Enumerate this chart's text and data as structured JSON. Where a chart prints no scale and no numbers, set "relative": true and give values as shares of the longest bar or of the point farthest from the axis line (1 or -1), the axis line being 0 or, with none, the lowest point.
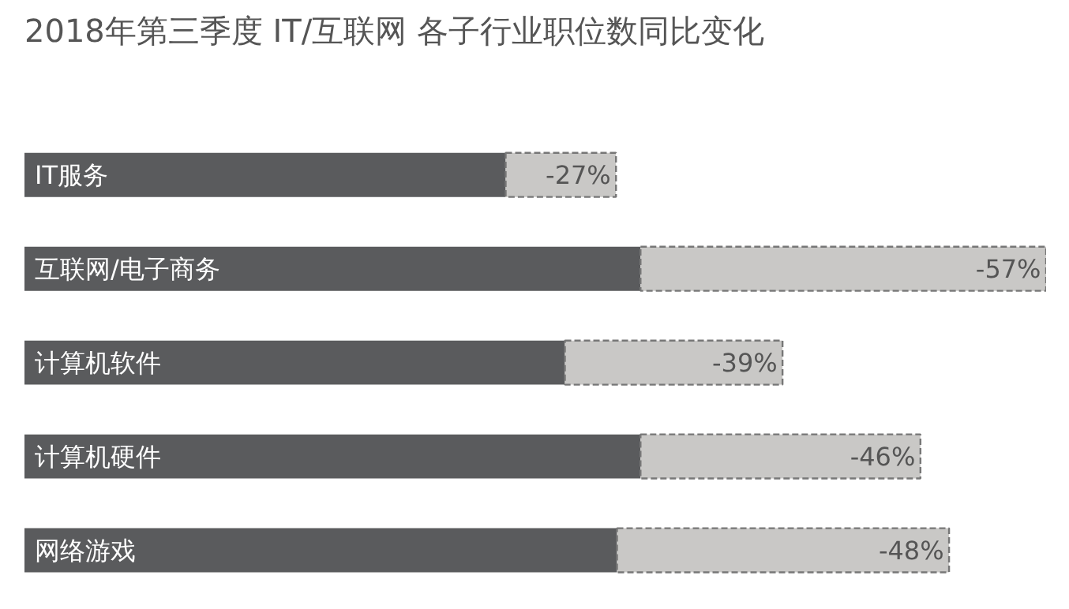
{
  "chart_data": {
    "type": "bar",
    "orientation": "horizontal",
    "stacked": true,
    "relative": true,
    "title": "2018年第三季度 IT/互联网 各子行业职位数同比变化",
    "categories": [
      "IT服务",
      "互联网/电子商务",
      "计算机软件",
      "计算机硬件",
      "网络游戏"
    ],
    "series": [
      {
        "color": "#5a5b5d",
        "values": [
          0.471,
          0.603,
          0.529,
          0.603,
          0.58
        ]
      },
      {
        "color": "#c9c8c6",
        "line_style": "dashed",
        "values": [
          0.108,
          0.397,
          0.213,
          0.274,
          0.325
        ]
      }
    ],
    "annotations": [
      "-27%",
      "-57%",
      "-39%",
      "-46%",
      "-48%"
    ]
  }
}
